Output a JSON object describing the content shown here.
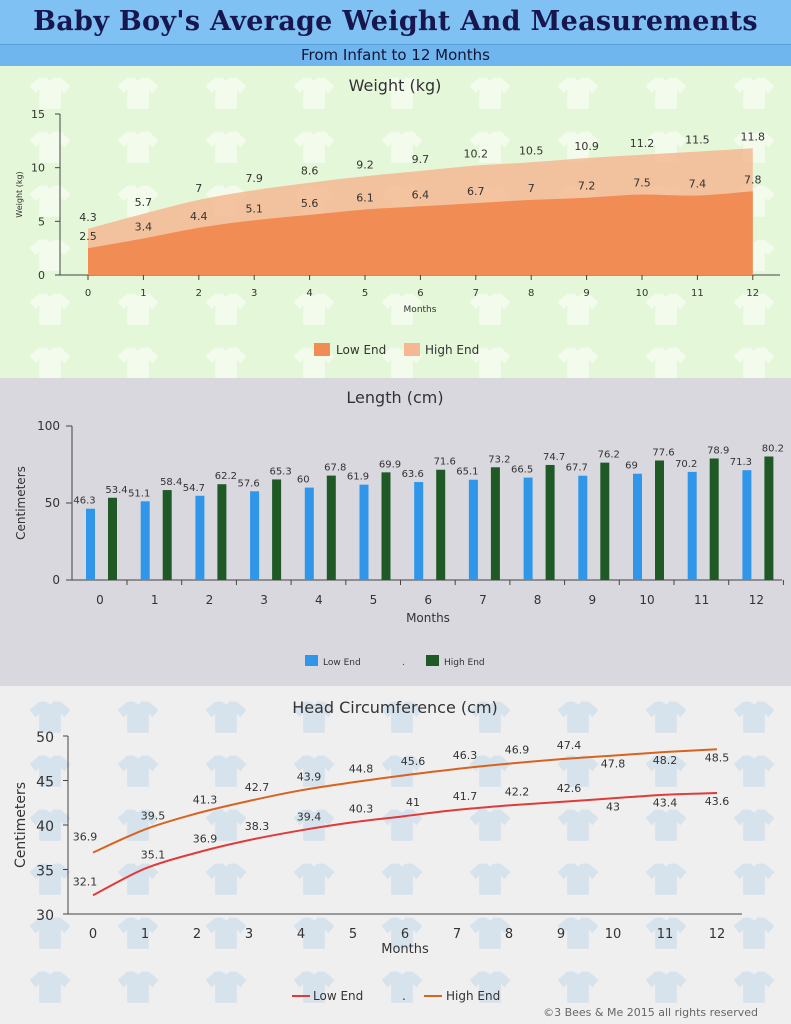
{
  "header": {
    "title": "Baby Boy's Average Weight And Measurements",
    "subtitle": "From Infant to 12 Months"
  },
  "colors": {
    "title_bg": "#7ec1f2",
    "weight_bg": "#e5f7d9",
    "length_bg": "#d8d8de",
    "head_bg": "#efefef",
    "weight_low": "#f28c55",
    "weight_high": "#f5b893",
    "length_low": "#2f96ea",
    "length_high": "#1f5a26",
    "head_low": "#e03a3a",
    "head_high": "#d9621f"
  },
  "footer": {
    "copyright": "©3 Bees & Me 2015 all rights reserved"
  },
  "chart_data": [
    {
      "type": "area",
      "title": "Weight (kg)",
      "xlabel": "Months",
      "ylabel": "Weight (kg)",
      "x": [
        0,
        1,
        2,
        3,
        4,
        5,
        6,
        7,
        8,
        9,
        10,
        11,
        12
      ],
      "ylim": [
        0,
        15
      ],
      "yticks": [
        0,
        5,
        10,
        15
      ],
      "series": [
        {
          "name": "Low End",
          "values": [
            2.5,
            3.4,
            4.4,
            5.1,
            5.6,
            6.1,
            6.4,
            6.7,
            7,
            7.2,
            7.5,
            7.4,
            7.8
          ]
        },
        {
          "name": "High End",
          "values": [
            4.3,
            5.7,
            7,
            7.9,
            8.6,
            9.2,
            9.7,
            10.2,
            10.5,
            10.9,
            11.2,
            11.5,
            11.8
          ]
        }
      ],
      "legend": "bottom"
    },
    {
      "type": "bar",
      "title": "Length (cm)",
      "xlabel": "Months",
      "ylabel": "Centimeters",
      "categories": [
        "0",
        "1",
        "2",
        "3",
        "4",
        "5",
        "6",
        "7",
        "8",
        "9",
        "10",
        "11",
        "12"
      ],
      "ylim": [
        0,
        100
      ],
      "yticks": [
        0,
        50,
        100
      ],
      "series": [
        {
          "name": "Low End",
          "values": [
            46.3,
            51.1,
            54.7,
            57.6,
            60,
            61.9,
            63.6,
            65.1,
            66.5,
            67.7,
            69,
            70.2,
            71.3
          ]
        },
        {
          "name": "High End",
          "values": [
            53.4,
            58.4,
            62.2,
            65.3,
            67.8,
            69.9,
            71.6,
            73.2,
            74.7,
            76.2,
            77.6,
            78.9,
            80.2
          ]
        }
      ],
      "legend": "bottom",
      "legend_separator": "."
    },
    {
      "type": "line",
      "title": "Head Circumference (cm)",
      "xlabel": "Months",
      "ylabel": "Centimeters",
      "x": [
        0,
        1,
        2,
        3,
        4,
        5,
        6,
        7,
        8,
        9,
        10,
        11,
        12
      ],
      "ylim": [
        30,
        50
      ],
      "yticks": [
        30,
        35,
        40,
        45,
        50
      ],
      "series": [
        {
          "name": "Low End",
          "values": [
            32.1,
            35.1,
            36.9,
            38.3,
            39.4,
            40.3,
            41,
            41.7,
            42.2,
            42.6,
            43,
            43.4,
            43.6
          ]
        },
        {
          "name": "High End",
          "values": [
            36.9,
            39.5,
            41.3,
            42.7,
            43.9,
            44.8,
            45.6,
            46.3,
            46.9,
            47.4,
            47.8,
            48.2,
            48.5
          ]
        }
      ],
      "legend": "bottom",
      "legend_separator": "."
    }
  ]
}
